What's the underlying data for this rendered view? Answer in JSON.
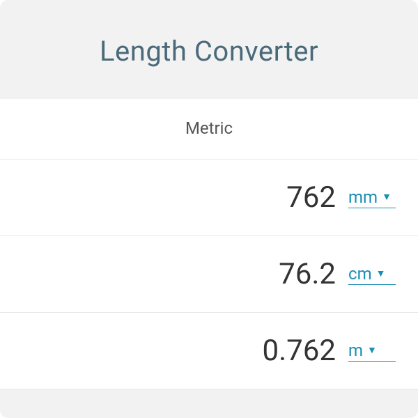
{
  "title": "Length Converter",
  "section_label": "Metric",
  "colors": {
    "card_bg": "#f2f2f2",
    "row_bg": "#ffffff",
    "title_color": "#4a6a7a",
    "text_color": "#333333",
    "link_color": "#1a8fb4",
    "border_color": "#e8e8e8"
  },
  "rows": [
    {
      "value": "762",
      "unit": "mm"
    },
    {
      "value": "76.2",
      "unit": "cm"
    },
    {
      "value": "0.762",
      "unit": "m"
    }
  ]
}
